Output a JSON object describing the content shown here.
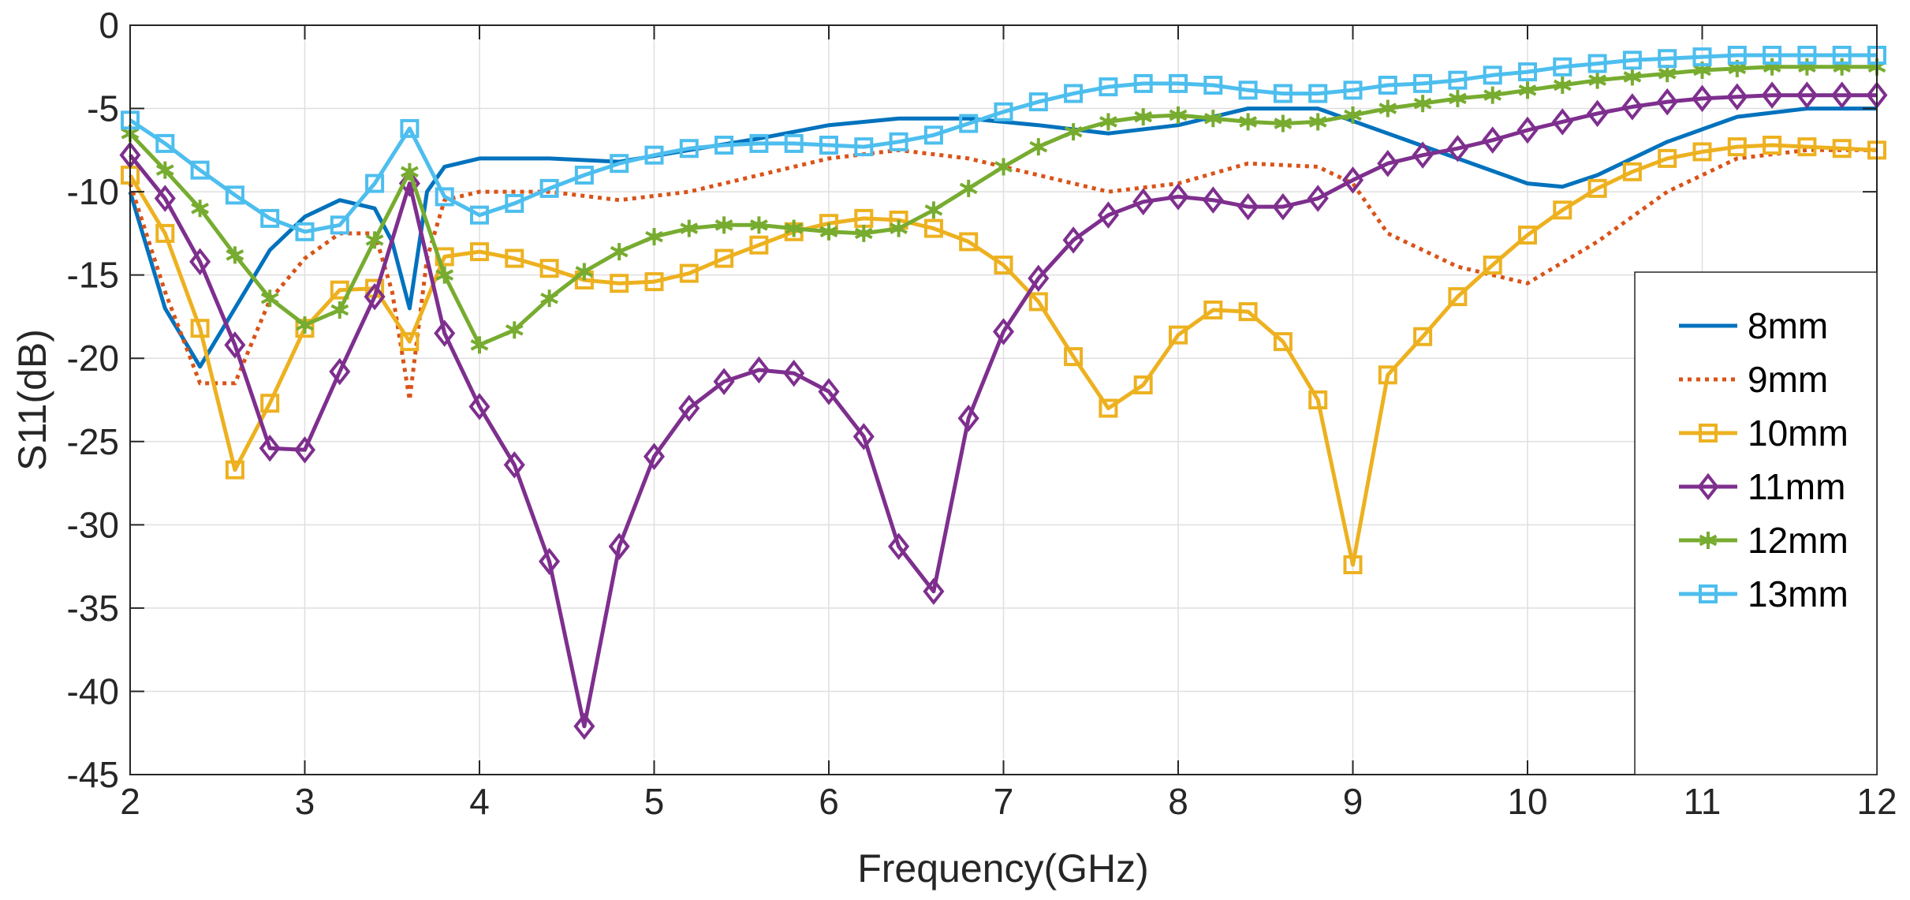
{
  "chart_data": {
    "type": "line",
    "title": "",
    "xlabel": "Frequency(GHz)",
    "ylabel": "S11(dB)",
    "xlim": [
      2,
      12
    ],
    "ylim": [
      -45,
      0
    ],
    "xticks": [
      2,
      3,
      4,
      5,
      6,
      7,
      8,
      9,
      10,
      11,
      12
    ],
    "yticks": [
      0,
      -5,
      -10,
      -15,
      -20,
      -25,
      -30,
      -35,
      -40,
      -45
    ],
    "grid": true,
    "legend_position": "right",
    "series": [
      {
        "name": "8mm",
        "color": "#0072BD",
        "style": "solid",
        "marker": "none",
        "points": [
          [
            2,
            -10
          ],
          [
            2.2,
            -17
          ],
          [
            2.4,
            -20.5
          ],
          [
            2.6,
            -17
          ],
          [
            2.8,
            -13.5
          ],
          [
            3,
            -11.5
          ],
          [
            3.2,
            -10.5
          ],
          [
            3.4,
            -11
          ],
          [
            3.5,
            -13
          ],
          [
            3.6,
            -17
          ],
          [
            3.7,
            -10
          ],
          [
            3.8,
            -8.5
          ],
          [
            4,
            -8
          ],
          [
            4.4,
            -8
          ],
          [
            4.8,
            -8.2
          ],
          [
            5.2,
            -7.5
          ],
          [
            5.6,
            -6.8
          ],
          [
            6,
            -6
          ],
          [
            6.4,
            -5.6
          ],
          [
            6.8,
            -5.6
          ],
          [
            7.2,
            -6
          ],
          [
            7.6,
            -6.5
          ],
          [
            8,
            -6
          ],
          [
            8.4,
            -5
          ],
          [
            8.8,
            -5
          ],
          [
            9.2,
            -6.5
          ],
          [
            9.6,
            -8
          ],
          [
            10,
            -9.5
          ],
          [
            10.2,
            -9.7
          ],
          [
            10.4,
            -9
          ],
          [
            10.8,
            -7
          ],
          [
            11.2,
            -5.5
          ],
          [
            11.6,
            -5
          ],
          [
            12,
            -5
          ]
        ]
      },
      {
        "name": "9mm",
        "color": "#D95319",
        "style": "dotted",
        "marker": "none",
        "points": [
          [
            2,
            -9.5
          ],
          [
            2.2,
            -16
          ],
          [
            2.4,
            -21.5
          ],
          [
            2.6,
            -21.5
          ],
          [
            2.8,
            -16.5
          ],
          [
            3,
            -14
          ],
          [
            3.2,
            -12.5
          ],
          [
            3.4,
            -12.5
          ],
          [
            3.5,
            -16
          ],
          [
            3.6,
            -22.5
          ],
          [
            3.7,
            -14
          ],
          [
            3.8,
            -10.5
          ],
          [
            4,
            -10
          ],
          [
            4.4,
            -10
          ],
          [
            4.8,
            -10.5
          ],
          [
            5.2,
            -10
          ],
          [
            5.6,
            -9
          ],
          [
            6,
            -8
          ],
          [
            6.4,
            -7.5
          ],
          [
            6.8,
            -8
          ],
          [
            7.2,
            -9
          ],
          [
            7.6,
            -10
          ],
          [
            8,
            -9.5
          ],
          [
            8.4,
            -8.3
          ],
          [
            8.8,
            -8.5
          ],
          [
            9,
            -9.5
          ],
          [
            9.2,
            -12.5
          ],
          [
            9.6,
            -14.5
          ],
          [
            10,
            -15.5
          ],
          [
            10.4,
            -13
          ],
          [
            10.8,
            -10
          ],
          [
            11.2,
            -8
          ],
          [
            11.6,
            -7.5
          ],
          [
            12,
            -7.5
          ]
        ]
      },
      {
        "name": "10mm",
        "color": "#EDB120",
        "style": "solid",
        "marker": "square",
        "points": [
          [
            2,
            -9
          ],
          [
            2.2,
            -12.5
          ],
          [
            2.4,
            -18.2
          ],
          [
            2.6,
            -26.7
          ],
          [
            2.8,
            -22.7
          ],
          [
            3,
            -18.2
          ],
          [
            3.2,
            -15.9
          ],
          [
            3.4,
            -15.8
          ],
          [
            3.6,
            -19
          ],
          [
            3.8,
            -13.9
          ],
          [
            4,
            -13.6
          ],
          [
            4.2,
            -14
          ],
          [
            4.4,
            -14.6
          ],
          [
            4.6,
            -15.3
          ],
          [
            4.8,
            -15.5
          ],
          [
            5,
            -15.4
          ],
          [
            5.2,
            -14.9
          ],
          [
            5.4,
            -14
          ],
          [
            5.6,
            -13.2
          ],
          [
            5.8,
            -12.4
          ],
          [
            6,
            -11.9
          ],
          [
            6.2,
            -11.6
          ],
          [
            6.4,
            -11.7
          ],
          [
            6.6,
            -12.2
          ],
          [
            6.8,
            -13
          ],
          [
            7,
            -14.4
          ],
          [
            7.2,
            -16.6
          ],
          [
            7.4,
            -19.9
          ],
          [
            7.6,
            -23
          ],
          [
            7.8,
            -21.6
          ],
          [
            8,
            -18.6
          ],
          [
            8.2,
            -17.1
          ],
          [
            8.4,
            -17.2
          ],
          [
            8.6,
            -19
          ],
          [
            8.8,
            -22.5
          ],
          [
            9,
            -32.4
          ],
          [
            9.2,
            -21
          ],
          [
            9.4,
            -18.7
          ],
          [
            9.6,
            -16.3
          ],
          [
            9.8,
            -14.4
          ],
          [
            10,
            -12.6
          ],
          [
            10.2,
            -11.1
          ],
          [
            10.4,
            -9.8
          ],
          [
            10.6,
            -8.8
          ],
          [
            10.8,
            -8
          ],
          [
            11,
            -7.6
          ],
          [
            11.2,
            -7.3
          ],
          [
            11.4,
            -7.2
          ],
          [
            11.6,
            -7.3
          ],
          [
            11.8,
            -7.4
          ],
          [
            12,
            -7.5
          ]
        ]
      },
      {
        "name": "11mm",
        "color": "#7E2F8E",
        "style": "solid",
        "marker": "diamond",
        "points": [
          [
            2,
            -7.8
          ],
          [
            2.2,
            -10.4
          ],
          [
            2.4,
            -14.2
          ],
          [
            2.6,
            -19.2
          ],
          [
            2.8,
            -25.4
          ],
          [
            3,
            -25.5
          ],
          [
            3.2,
            -20.8
          ],
          [
            3.4,
            -16.3
          ],
          [
            3.6,
            -9.5
          ],
          [
            3.8,
            -18.5
          ],
          [
            4,
            -22.9
          ],
          [
            4.2,
            -26.4
          ],
          [
            4.4,
            -32.2
          ],
          [
            4.6,
            -42.1
          ],
          [
            4.8,
            -31.3
          ],
          [
            5,
            -25.9
          ],
          [
            5.2,
            -23
          ],
          [
            5.4,
            -21.4
          ],
          [
            5.6,
            -20.7
          ],
          [
            5.8,
            -20.9
          ],
          [
            6,
            -22
          ],
          [
            6.2,
            -24.7
          ],
          [
            6.4,
            -31.3
          ],
          [
            6.6,
            -34
          ],
          [
            6.8,
            -23.6
          ],
          [
            7,
            -18.4
          ],
          [
            7.2,
            -15.2
          ],
          [
            7.4,
            -12.9
          ],
          [
            7.6,
            -11.4
          ],
          [
            7.8,
            -10.6
          ],
          [
            8,
            -10.3
          ],
          [
            8.2,
            -10.5
          ],
          [
            8.4,
            -10.9
          ],
          [
            8.6,
            -10.9
          ],
          [
            8.8,
            -10.4
          ],
          [
            9,
            -9.3
          ],
          [
            9.2,
            -8.3
          ],
          [
            9.4,
            -7.8
          ],
          [
            9.6,
            -7.4
          ],
          [
            9.8,
            -6.9
          ],
          [
            10,
            -6.3
          ],
          [
            10.2,
            -5.8
          ],
          [
            10.4,
            -5.3
          ],
          [
            10.6,
            -4.9
          ],
          [
            10.8,
            -4.6
          ],
          [
            11,
            -4.4
          ],
          [
            11.2,
            -4.3
          ],
          [
            11.4,
            -4.2
          ],
          [
            11.6,
            -4.2
          ],
          [
            11.8,
            -4.2
          ],
          [
            12,
            -4.2
          ]
        ]
      },
      {
        "name": "12mm",
        "color": "#77AC30",
        "style": "solid",
        "marker": "asterisk",
        "points": [
          [
            2,
            -6.5
          ],
          [
            2.2,
            -8.7
          ],
          [
            2.4,
            -11
          ],
          [
            2.6,
            -13.8
          ],
          [
            2.8,
            -16.4
          ],
          [
            3,
            -18
          ],
          [
            3.2,
            -17.1
          ],
          [
            3.4,
            -12.9
          ],
          [
            3.6,
            -8.8
          ],
          [
            3.8,
            -15
          ],
          [
            4,
            -19.2
          ],
          [
            4.2,
            -18.3
          ],
          [
            4.4,
            -16.4
          ],
          [
            4.6,
            -14.8
          ],
          [
            4.8,
            -13.6
          ],
          [
            5,
            -12.7
          ],
          [
            5.2,
            -12.2
          ],
          [
            5.4,
            -12
          ],
          [
            5.6,
            -12
          ],
          [
            5.8,
            -12.2
          ],
          [
            6,
            -12.4
          ],
          [
            6.2,
            -12.5
          ],
          [
            6.4,
            -12.2
          ],
          [
            6.6,
            -11.1
          ],
          [
            6.8,
            -9.8
          ],
          [
            7,
            -8.5
          ],
          [
            7.2,
            -7.3
          ],
          [
            7.4,
            -6.4
          ],
          [
            7.6,
            -5.8
          ],
          [
            7.8,
            -5.5
          ],
          [
            8,
            -5.4
          ],
          [
            8.2,
            -5.6
          ],
          [
            8.4,
            -5.8
          ],
          [
            8.6,
            -5.9
          ],
          [
            8.8,
            -5.8
          ],
          [
            9,
            -5.4
          ],
          [
            9.2,
            -5
          ],
          [
            9.4,
            -4.7
          ],
          [
            9.6,
            -4.4
          ],
          [
            9.8,
            -4.2
          ],
          [
            10,
            -3.9
          ],
          [
            10.2,
            -3.6
          ],
          [
            10.4,
            -3.3
          ],
          [
            10.6,
            -3.1
          ],
          [
            10.8,
            -2.9
          ],
          [
            11,
            -2.7
          ],
          [
            11.2,
            -2.6
          ],
          [
            11.4,
            -2.5
          ],
          [
            11.6,
            -2.5
          ],
          [
            11.8,
            -2.5
          ],
          [
            12,
            -2.5
          ]
        ]
      },
      {
        "name": "13mm",
        "color": "#4DBEEE",
        "style": "solid",
        "marker": "square",
        "points": [
          [
            2,
            -5.7
          ],
          [
            2.2,
            -7.1
          ],
          [
            2.4,
            -8.7
          ],
          [
            2.6,
            -10.2
          ],
          [
            2.8,
            -11.6
          ],
          [
            3,
            -12.4
          ],
          [
            3.2,
            -12
          ],
          [
            3.4,
            -9.5
          ],
          [
            3.6,
            -6.2
          ],
          [
            3.8,
            -10.3
          ],
          [
            4,
            -11.4
          ],
          [
            4.2,
            -10.7
          ],
          [
            4.4,
            -9.8
          ],
          [
            4.6,
            -9
          ],
          [
            4.8,
            -8.3
          ],
          [
            5,
            -7.8
          ],
          [
            5.2,
            -7.4
          ],
          [
            5.4,
            -7.2
          ],
          [
            5.6,
            -7.1
          ],
          [
            5.8,
            -7.1
          ],
          [
            6,
            -7.2
          ],
          [
            6.2,
            -7.3
          ],
          [
            6.4,
            -7
          ],
          [
            6.6,
            -6.6
          ],
          [
            6.8,
            -5.9
          ],
          [
            7,
            -5.2
          ],
          [
            7.2,
            -4.6
          ],
          [
            7.4,
            -4.1
          ],
          [
            7.6,
            -3.7
          ],
          [
            7.8,
            -3.5
          ],
          [
            8,
            -3.5
          ],
          [
            8.2,
            -3.6
          ],
          [
            8.4,
            -3.9
          ],
          [
            8.6,
            -4.1
          ],
          [
            8.8,
            -4.1
          ],
          [
            9,
            -3.9
          ],
          [
            9.2,
            -3.6
          ],
          [
            9.4,
            -3.5
          ],
          [
            9.6,
            -3.3
          ],
          [
            9.8,
            -3
          ],
          [
            10,
            -2.8
          ],
          [
            10.2,
            -2.5
          ],
          [
            10.4,
            -2.3
          ],
          [
            10.6,
            -2.1
          ],
          [
            10.8,
            -2
          ],
          [
            11,
            -1.9
          ],
          [
            11.2,
            -1.8
          ],
          [
            11.4,
            -1.8
          ],
          [
            11.6,
            -1.8
          ],
          [
            11.8,
            -1.8
          ],
          [
            12,
            -1.8
          ]
        ]
      }
    ]
  }
}
